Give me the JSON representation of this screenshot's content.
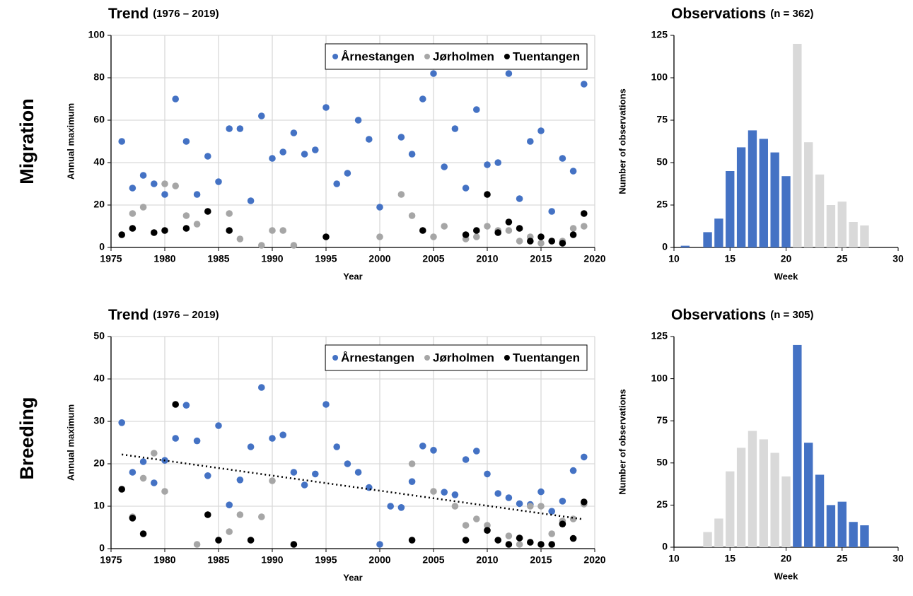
{
  "row_labels": [
    "Migration",
    "Breeding"
  ],
  "chart_data": [
    {
      "type": "scatter",
      "title": "Trend",
      "subtitle": "(1976 – 2019)",
      "x_label": "Year",
      "y_label": "Annual maximum",
      "x": [
        1976,
        1977,
        1978,
        1979,
        1980,
        1981,
        1982,
        1983,
        1984,
        1985,
        1986,
        1987,
        1988,
        1989,
        1990,
        1991,
        1992,
        1993,
        1994,
        1995,
        1996,
        1997,
        1998,
        1999,
        2000,
        2001,
        2002,
        2003,
        2004,
        2005,
        2006,
        2007,
        2008,
        2009,
        2010,
        2011,
        2012,
        2013,
        2014,
        2015,
        2016,
        2017,
        2018,
        2019
      ],
      "series": [
        {
          "name": "Årnestangen",
          "color": "#4472c4",
          "values": [
            50,
            28,
            34,
            30,
            25,
            70,
            50,
            25,
            43,
            31,
            56,
            56,
            22,
            62,
            42,
            45,
            54,
            44,
            46,
            66,
            30,
            35,
            60,
            51,
            19,
            null,
            52,
            44,
            70,
            82,
            38,
            56,
            28,
            65,
            39,
            40,
            82,
            23,
            50,
            55,
            17,
            42,
            36,
            77
          ]
        },
        {
          "name": "Jørholmen",
          "color": "#a6a6a6",
          "values": [
            null,
            16,
            19,
            null,
            30,
            29,
            15,
            11,
            null,
            null,
            16,
            4,
            null,
            1,
            8,
            8,
            1,
            null,
            null,
            null,
            null,
            null,
            null,
            null,
            5,
            null,
            25,
            15,
            null,
            5,
            10,
            null,
            4,
            5,
            10,
            8,
            8,
            3,
            5,
            2,
            3,
            3,
            9,
            10
          ]
        },
        {
          "name": "Tuentangen",
          "color": "#000000",
          "values": [
            6,
            9,
            null,
            7,
            8,
            null,
            9,
            null,
            17,
            null,
            8,
            null,
            null,
            null,
            null,
            null,
            null,
            null,
            null,
            5,
            null,
            null,
            null,
            null,
            null,
            null,
            null,
            null,
            8,
            null,
            null,
            null,
            6,
            8,
            25,
            7,
            12,
            9,
            3,
            5,
            3,
            2,
            6,
            16
          ]
        }
      ],
      "xlim": [
        1975,
        2020
      ],
      "xticks": [
        1975,
        1980,
        1985,
        1990,
        1995,
        2000,
        2005,
        2010,
        2015,
        2020
      ],
      "ylim": [
        0,
        100
      ],
      "yticks": [
        0,
        20,
        40,
        60,
        80,
        100
      ],
      "grid": true,
      "legend": "top-right"
    },
    {
      "type": "scatter",
      "title": "Trend",
      "subtitle": "(1976 – 2019)",
      "x_label": "Year",
      "y_label": "Annual maximum",
      "x": [
        1976,
        1977,
        1978,
        1979,
        1980,
        1981,
        1982,
        1983,
        1984,
        1985,
        1986,
        1987,
        1988,
        1989,
        1990,
        1991,
        1992,
        1993,
        1994,
        1995,
        1996,
        1997,
        1998,
        1999,
        2000,
        2001,
        2002,
        2003,
        2004,
        2005,
        2006,
        2007,
        2008,
        2009,
        2010,
        2011,
        2012,
        2013,
        2014,
        2015,
        2016,
        2017,
        2018,
        2019
      ],
      "series": [
        {
          "name": "Årnestangen",
          "color": "#4472c4",
          "values": [
            29.7,
            18,
            20.5,
            15.5,
            20.8,
            26,
            33.8,
            25.4,
            17.2,
            29,
            10.3,
            16.2,
            24,
            38,
            26,
            26.8,
            18,
            15,
            17.6,
            34,
            24,
            20,
            18,
            14.4,
            1,
            10,
            9.7,
            15.8,
            24.2,
            23.2,
            13.3,
            12.7,
            21,
            23,
            17.6,
            13,
            12,
            10.6,
            10.4,
            13.4,
            8.8,
            11.2,
            18.4,
            21.6
          ]
        },
        {
          "name": "Jørholmen",
          "color": "#a6a6a6",
          "values": [
            null,
            7.5,
            16.6,
            22.5,
            13.5,
            null,
            null,
            1,
            null,
            null,
            4,
            8,
            null,
            7.5,
            16,
            null,
            null,
            null,
            null,
            null,
            null,
            null,
            null,
            null,
            null,
            null,
            null,
            20,
            null,
            13.5,
            null,
            10,
            5.5,
            7,
            5.5,
            null,
            3,
            1,
            10,
            10,
            3.5,
            6.5,
            7,
            10.5
          ]
        },
        {
          "name": "Tuentangen",
          "color": "#000000",
          "values": [
            14,
            7.2,
            3.5,
            null,
            null,
            34,
            null,
            null,
            8,
            2,
            null,
            null,
            2,
            null,
            null,
            null,
            1,
            null,
            null,
            null,
            null,
            null,
            null,
            null,
            null,
            null,
            null,
            2,
            null,
            null,
            null,
            null,
            2,
            null,
            4.3,
            2,
            1,
            2.5,
            1.5,
            1,
            1,
            5.8,
            2.4,
            11
          ]
        }
      ],
      "trendline": {
        "x": [
          1976,
          2019
        ],
        "values": [
          22.2,
          6.9
        ],
        "color": "#000000"
      },
      "xlim": [
        1975,
        2020
      ],
      "xticks": [
        1975,
        1980,
        1985,
        1990,
        1995,
        2000,
        2005,
        2010,
        2015,
        2020
      ],
      "ylim": [
        0,
        50
      ],
      "yticks": [
        0,
        10,
        20,
        30,
        40,
        50
      ],
      "grid": true,
      "legend": "top-right"
    },
    {
      "type": "bar",
      "title": "Observations",
      "subtitle": "(n = 362)",
      "x_label": "Week",
      "y_label": "Number of observations",
      "x": [
        11,
        12,
        13,
        14,
        15,
        16,
        17,
        18,
        19,
        20,
        21,
        22,
        23,
        24,
        25,
        26,
        27
      ],
      "series": [
        {
          "color": "#4472c4",
          "values": [
            1,
            0,
            9,
            17,
            45,
            59,
            69,
            64,
            56,
            42,
            null,
            null,
            null,
            null,
            null,
            null,
            null
          ]
        },
        {
          "color": "#d9d9d9",
          "values": [
            null,
            null,
            null,
            null,
            null,
            null,
            null,
            null,
            null,
            null,
            120,
            62,
            43,
            25,
            27,
            15,
            13
          ]
        }
      ],
      "xlim": [
        10,
        30
      ],
      "xticks": [
        10,
        15,
        20,
        25,
        30
      ],
      "ylim": [
        0,
        125
      ],
      "yticks": [
        0,
        25,
        50,
        75,
        100,
        125
      ],
      "grid": false
    },
    {
      "type": "bar",
      "title": "Observations",
      "subtitle": "(n = 305)",
      "x_label": "Week",
      "y_label": "Number of observations",
      "x": [
        11,
        12,
        13,
        14,
        15,
        16,
        17,
        18,
        19,
        20,
        21,
        22,
        23,
        24,
        25,
        26,
        27
      ],
      "series": [
        {
          "color": "#d9d9d9",
          "values": [
            null,
            null,
            9,
            17,
            45,
            59,
            69,
            64,
            56,
            42,
            null,
            null,
            null,
            null,
            null,
            null,
            null
          ]
        },
        {
          "color": "#4472c4",
          "values": [
            null,
            null,
            null,
            null,
            null,
            null,
            null,
            null,
            null,
            null,
            120,
            62,
            43,
            25,
            27,
            15,
            13
          ]
        }
      ],
      "xlim": [
        10,
        30
      ],
      "xticks": [
        10,
        15,
        20,
        25,
        30
      ],
      "ylim": [
        0,
        125
      ],
      "yticks": [
        0,
        25,
        50,
        75,
        100,
        125
      ],
      "grid": false
    }
  ]
}
